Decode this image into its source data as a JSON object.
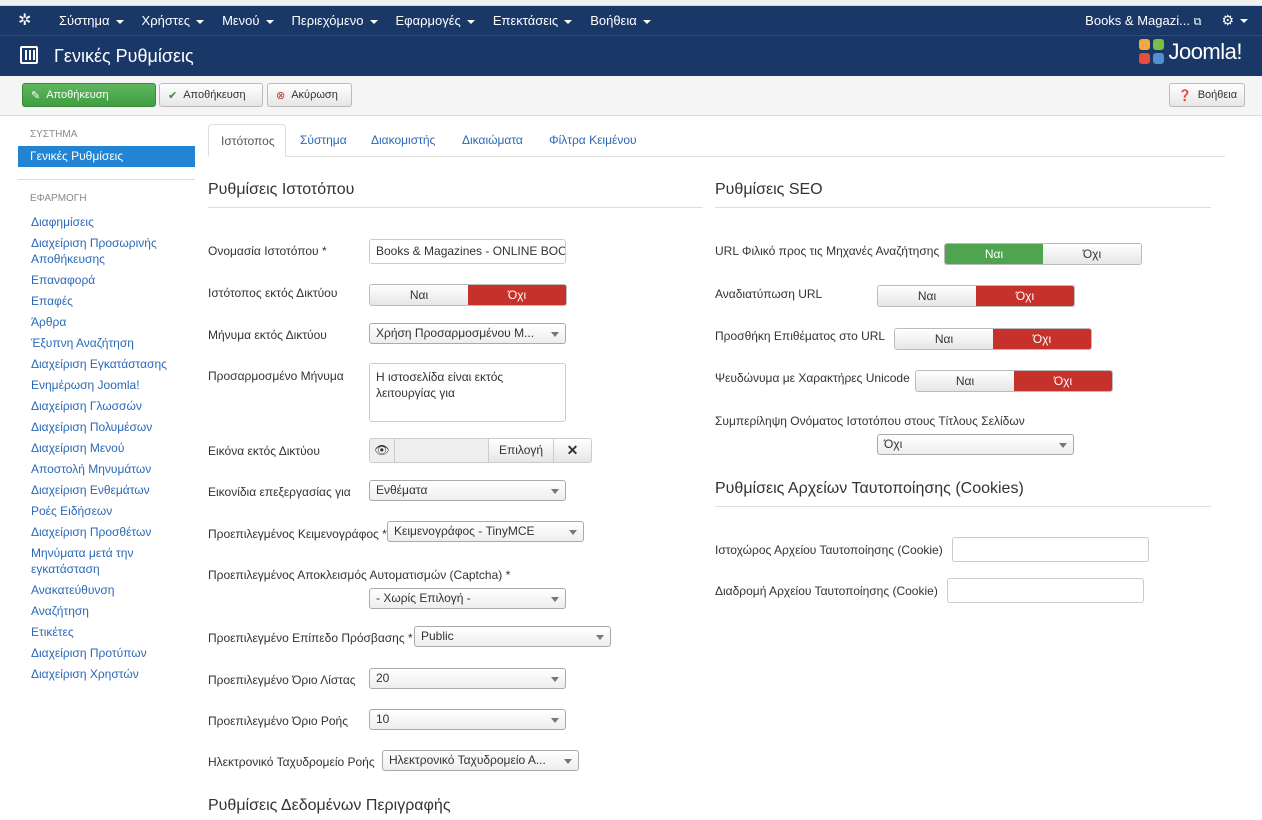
{
  "topnav": {
    "menus": [
      "Σύστημα",
      "Χρήστες",
      "Μενού",
      "Περιεχόμενο",
      "Εφαρμογές",
      "Επεκτάσεις",
      "Βοήθεια"
    ],
    "site_name": "Books & Magazi...",
    "external_icon": "external-link-icon",
    "settings_icon": "gear-icon"
  },
  "header": {
    "title": "Γενικές Ρυθμίσεις",
    "logo_text": "Joomla!"
  },
  "toolbar": {
    "save_label": "Αποθήκευση",
    "save_close_label": "Αποθήκευση",
    "cancel_label": "Ακύρωση",
    "help_label": "Βοήθεια"
  },
  "sidebar": {
    "system_heading": "ΣΥΣΤΗΜΑ",
    "active_item": "Γενικές Ρυθμίσεις",
    "apps_heading": "ΕΦΑΡΜΟΓΗ",
    "items": [
      "Διαφημίσεις",
      "Διαχείριση Προσωρινής Αποθήκευσης",
      "Επαναφορά",
      "Επαφές",
      "Άρθρα",
      "Έξυπνη Αναζήτηση",
      "Διαχείριση Εγκατάστασης",
      "Ενημέρωση Joomla!",
      "Διαχείριση Γλωσσών",
      "Διαχείριση Πολυμέσων",
      "Διαχείριση Μενού",
      "Αποστολή Μηνυμάτων",
      "Διαχείριση Ενθεμάτων",
      "Ροές Ειδήσεων",
      "Διαχείριση Προσθέτων",
      "Μηνύματα μετά την εγκατάσταση",
      "Ανακατεύθυνση",
      "Αναζήτηση",
      "Ετικέτες",
      "Διαχείριση Προτύπων",
      "Διαχείριση Χρηστών"
    ]
  },
  "tabs": [
    "Ιστότοπος",
    "Σύστημα",
    "Διακομιστής",
    "Δικαιώματα",
    "Φίλτρα Κειμένου"
  ],
  "site": {
    "title": "Ρυθμίσεις Ιστοτόπου",
    "sitename_label": "Ονομασία Ιστοτόπου *",
    "sitename_value": "Books & Magazines - ONLINE BOOKSTORE",
    "offline_label": "Ιστότοπος εκτός Δικτύου",
    "offline_message_label": "Μήνυμα εκτός Δικτύου",
    "offline_message_value": "Χρήση Προσαρμοσμένου Μ...",
    "custom_message_label": "Προσαρμοσμένο Μήνυμα",
    "custom_message_value": "Η ιστοσελίδα είναι εκτός λειτουργίας για",
    "offline_image_label": "Εικόνα εκτός Δικτύου",
    "select_label": "Επιλογή",
    "clear_label": "✕",
    "edit_icons_label": "Εικονίδια επεξεργασίας για",
    "edit_icons_value": "Ενθέματα",
    "editor_label": "Προεπιλεγμένος Κειμενογράφος *",
    "editor_value": "Κειμενογράφος - TinyMCE",
    "captcha_label": "Προεπιλεγμένος Αποκλεισμός Αυτοματισμών (Captcha) *",
    "captcha_value": "- Χωρίς Επιλογή -",
    "access_label": "Προεπιλεγμένο Επίπεδο Πρόσβασης *",
    "access_value": "Public",
    "list_limit_label": "Προεπιλεγμένο Όριο Λίστας",
    "list_limit_value": "20",
    "feed_limit_label": "Προεπιλεγμένο Όριο Ροής",
    "feed_limit_value": "10",
    "feed_email_label": "Ηλεκτρονικό Ταχυδρομείο Ροής",
    "feed_email_value": "Ηλεκτρονικό Ταχυδρομείο Α...",
    "metadata_title": "Ρυθμίσεις Δεδομένων Περιγραφής"
  },
  "toggle": {
    "yes": "Ναι",
    "no": "Όχι"
  },
  "seo": {
    "title": "Ρυθμίσεις SEO",
    "sef_label": "URL Φιλικό προς τις Μηχανές Αναζήτησης",
    "rewrite_label": "Αναδιατύπωση URL",
    "suffix_label": "Προσθήκη Επιθέματος στο URL",
    "unicode_label": "Ψευδώνυμα με Χαρακτήρες Unicode",
    "sitename_pages_label": "Συμπερίληψη Ονόματος Ιστοτόπου στους Τίτλους Σελίδων",
    "sitename_pages_value": "Όχι"
  },
  "cookie": {
    "title": "Ρυθμίσεις Αρχείων Ταυτοποίησης (Cookies)",
    "domain_label": "Ιστοχώρος Αρχείου Ταυτοποίησης (Cookie)",
    "path_label": "Διαδρομή Αρχείου Ταυτοποίησης (Cookie)"
  },
  "colors": {
    "nav_bg": "#1a3867",
    "active_blue": "#2384d3",
    "toggle_red": "#c6322b",
    "toggle_green": "#4fa54f",
    "link": "#2a69b8"
  }
}
